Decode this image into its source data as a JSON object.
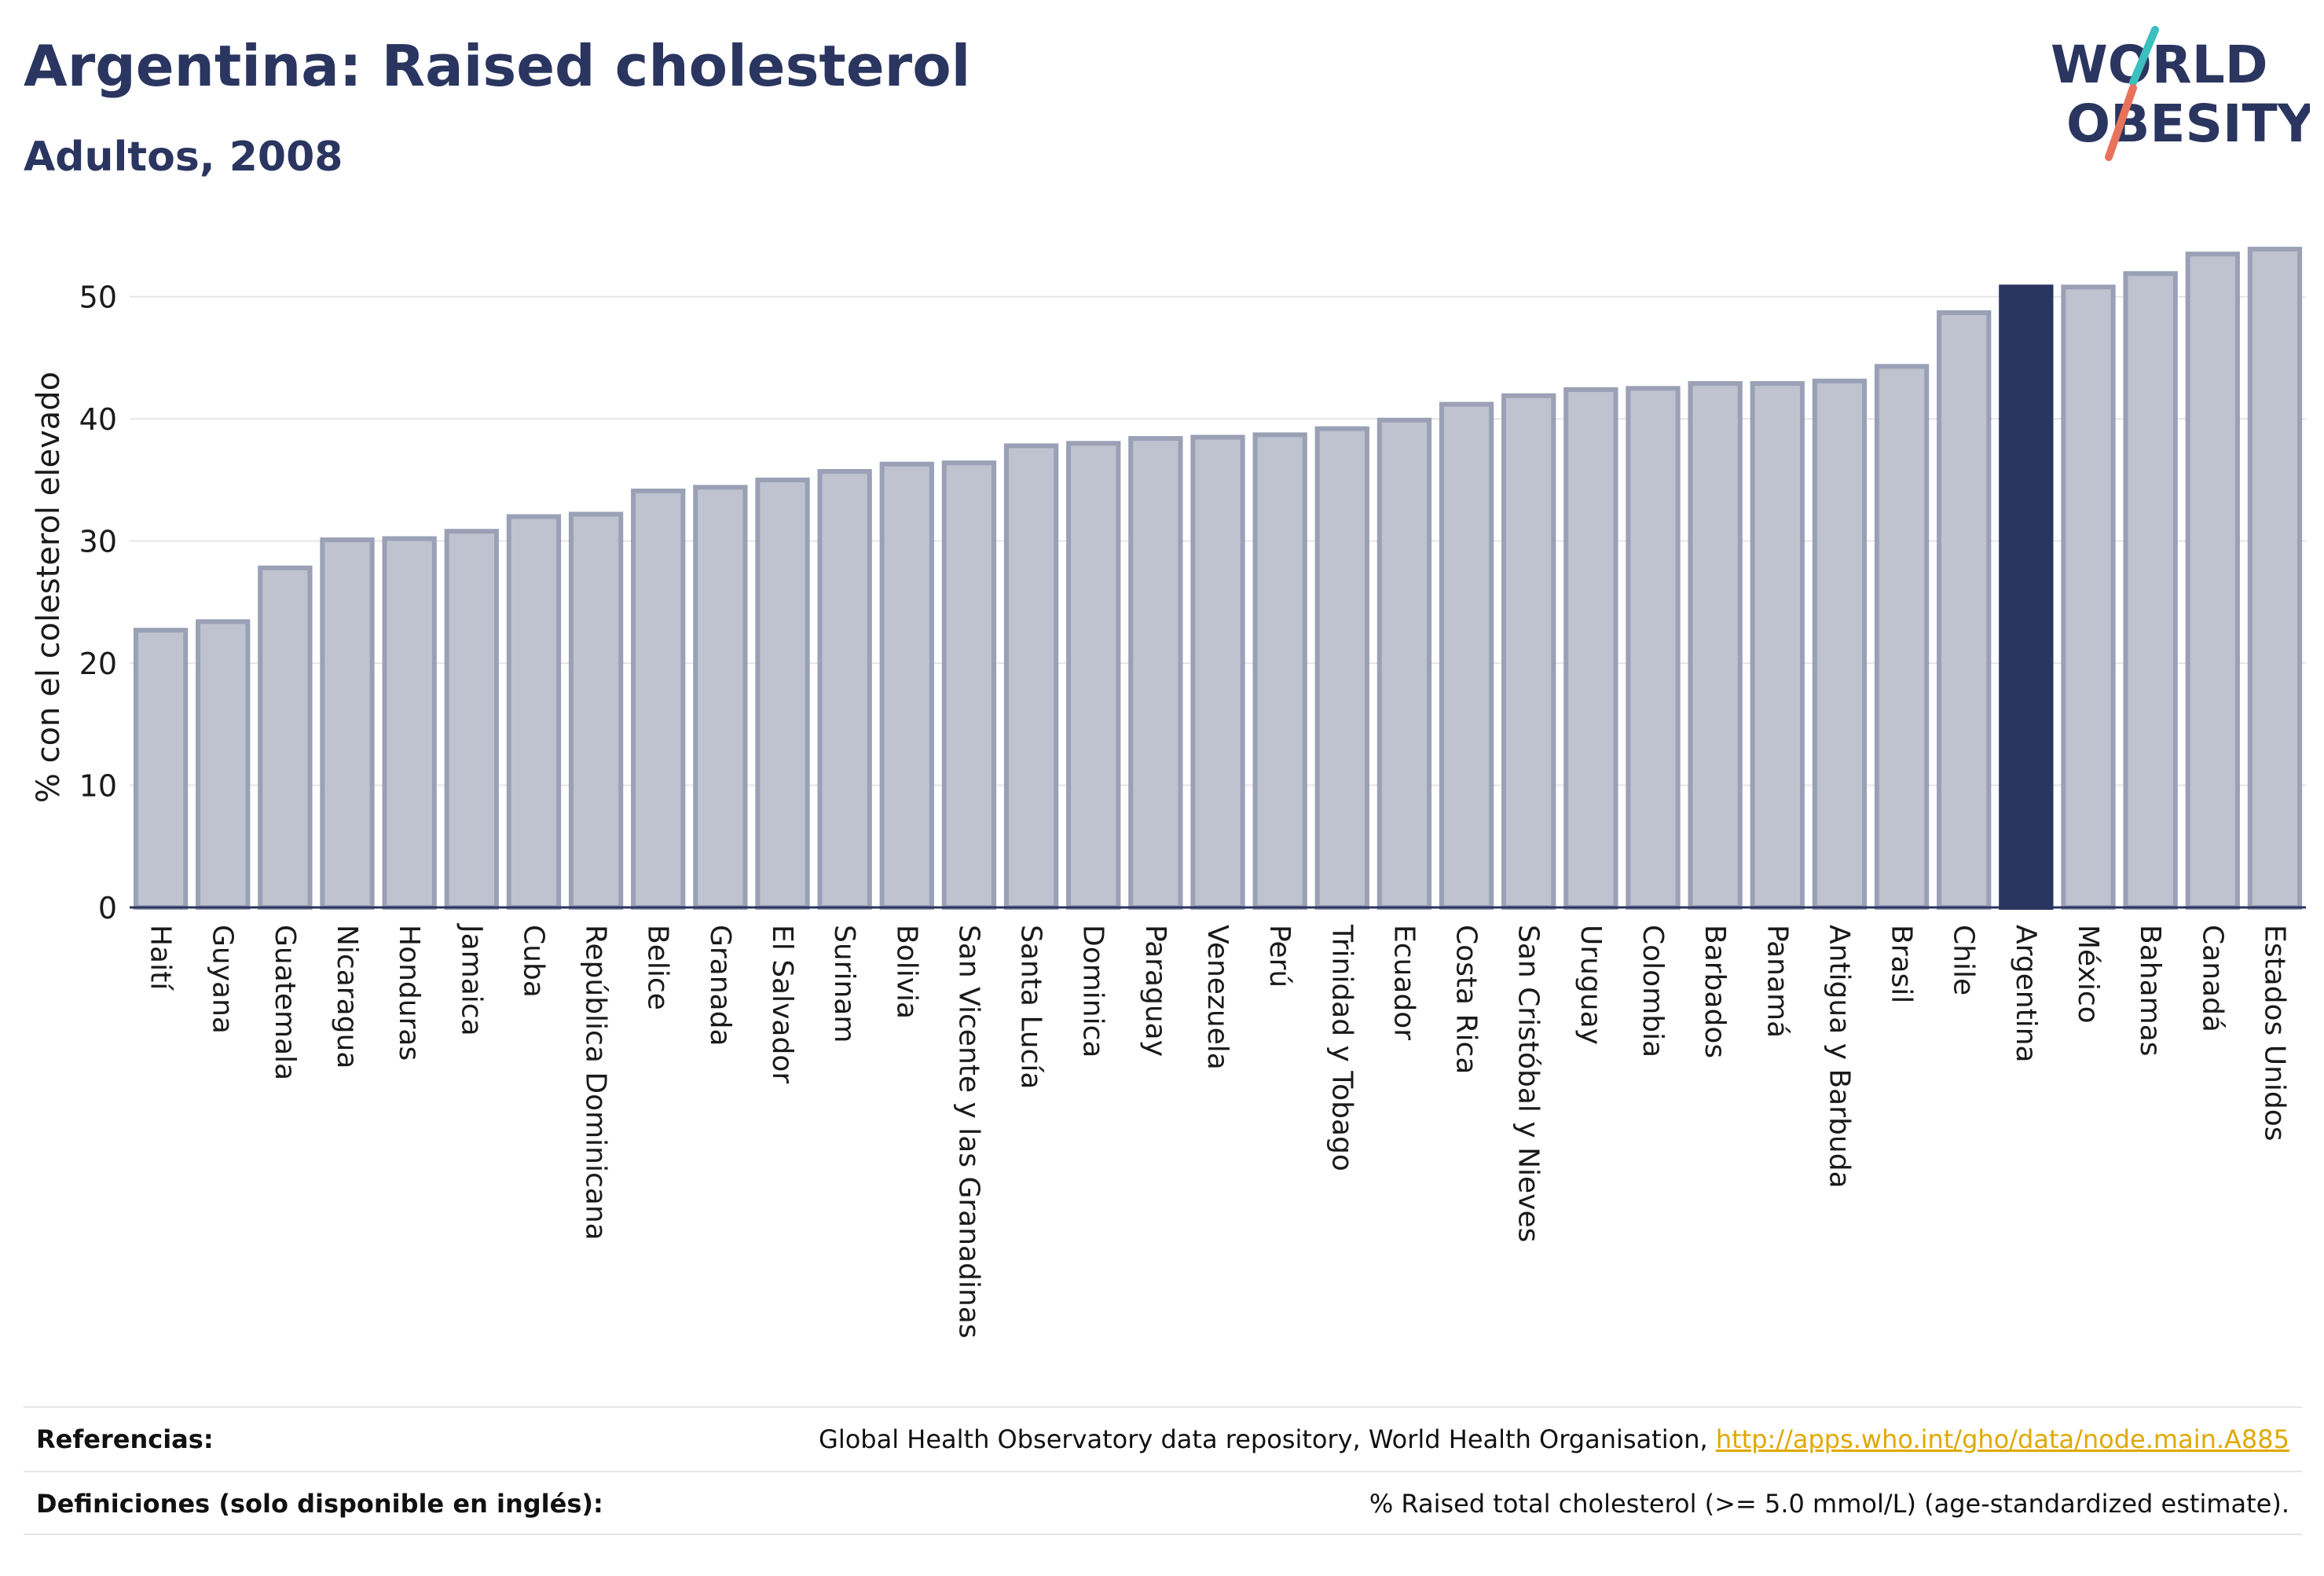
{
  "header": {
    "title": "Argentina: Raised cholesterol",
    "subtitle": "Adultos, 2008"
  },
  "logo": {
    "line1": "WORLD",
    "line2": "OBESITY",
    "slash_color_top": "#3bbfbf",
    "slash_color_bottom": "#e8735a",
    "text_color": "#2a3560"
  },
  "colors": {
    "bar_default": "#bfc3cf",
    "bar_default_stroke": "#9aa0b5",
    "bar_highlight": "#2a3560",
    "grid": "#e6e6e6",
    "axis": "#2a3560"
  },
  "chart_data": {
    "type": "bar",
    "ylabel": "% con el colesterol elevado",
    "xlabel": "",
    "ylim": [
      0,
      55
    ],
    "yticks": [
      0,
      10,
      20,
      30,
      40,
      50
    ],
    "grid": true,
    "highlight": "Argentina",
    "categories": [
      "Haití",
      "Guyana",
      "Guatemala",
      "Nicaragua",
      "Honduras",
      "Jamaica",
      "Cuba",
      "República Dominicana",
      "Belice",
      "Granada",
      "El Salvador",
      "Surinam",
      "Bolivia",
      "San Vicente y las Granadinas",
      "Santa Lucía",
      "Dominica",
      "Paraguay",
      "Venezuela",
      "Perú",
      "Trinidad y Tobago",
      "Ecuador",
      "Costa Rica",
      "San Cristóbal y Nieves",
      "Uruguay",
      "Colombia",
      "Barbados",
      "Panamá",
      "Antigua y Barbuda",
      "Brasil",
      "Chile",
      "Argentina",
      "México",
      "Bahamas",
      "Canadá",
      "Estados Unidos"
    ],
    "values": [
      22.7,
      23.4,
      27.8,
      30.1,
      30.2,
      30.8,
      32.0,
      32.2,
      34.1,
      34.4,
      35.0,
      35.7,
      36.3,
      36.4,
      37.8,
      38.0,
      38.4,
      38.5,
      38.7,
      39.2,
      39.9,
      41.2,
      41.9,
      42.4,
      42.5,
      42.9,
      42.9,
      43.1,
      44.3,
      48.7,
      50.8,
      50.8,
      51.9,
      53.5,
      53.9
    ]
  },
  "footer": {
    "references_label": "Referencias:",
    "references_text": "Global Health Observatory data repository, World Health Organisation, ",
    "references_link": "http://apps.who.int/gho/data/node.main.A885",
    "definitions_label": "Definiciones (solo disponible en inglés):",
    "definitions_text": "% Raised total cholesterol (>= 5.0 mmol/L) (age-standardized estimate)."
  }
}
